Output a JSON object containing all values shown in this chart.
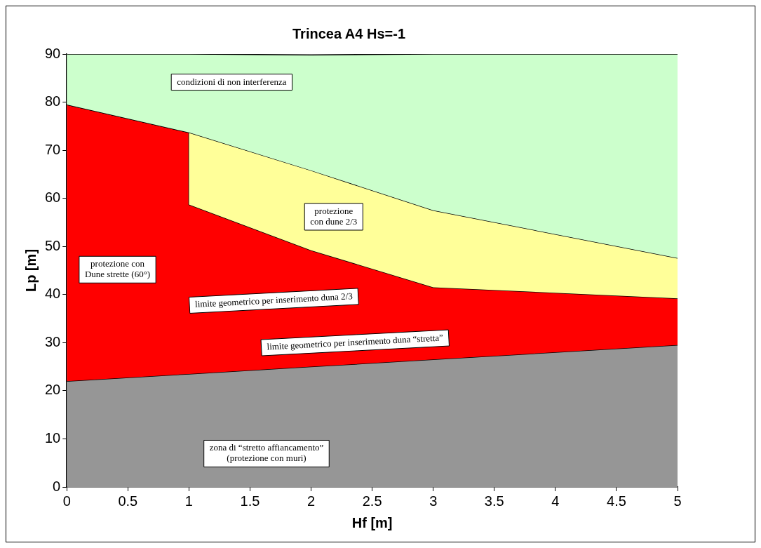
{
  "chart_data": {
    "type": "area",
    "title": "Trincea A4 Hs=-1",
    "xlabel": "Hf [m]",
    "ylabel": "Lp [m]",
    "stacked": true,
    "legend": false,
    "x": [
      0,
      1,
      1,
      2,
      3,
      5
    ],
    "series": [
      {
        "color": "#969696",
        "values": [
          22,
          23.5,
          23.5,
          25,
          26.5,
          29.5
        ]
      },
      {
        "color": "#ff0000",
        "values": [
          57.5,
          50.2,
          35.2,
          24.2,
          15,
          9.7
        ]
      },
      {
        "color": "#ffff99",
        "values": [
          0,
          0,
          15,
          16.6,
          16,
          8.4
        ]
      },
      {
        "color": "#ccffcc",
        "values": [
          10.5,
          16.3,
          16.3,
          24,
          32.5,
          42.4
        ]
      }
    ],
    "xlim": [
      0,
      5
    ],
    "xticks": [
      0,
      0.5,
      1,
      1.5,
      2,
      2.5,
      3,
      3.5,
      4,
      4.5,
      5
    ],
    "ylim": [
      0,
      90
    ],
    "yticks": [
      0,
      10,
      20,
      30,
      40,
      50,
      60,
      70,
      80,
      90
    ],
    "annotations": [
      "condizioni di non interferenza",
      "protezione\ncon dune 2/3",
      "protezione con\nDune strette (60°)",
      "limite geometrico per inserimento duna 2/3",
      "limite geometrico per inserimento duna “stretta”",
      "zona di “stretto affiancamento”\n(protezione con muri)"
    ]
  }
}
